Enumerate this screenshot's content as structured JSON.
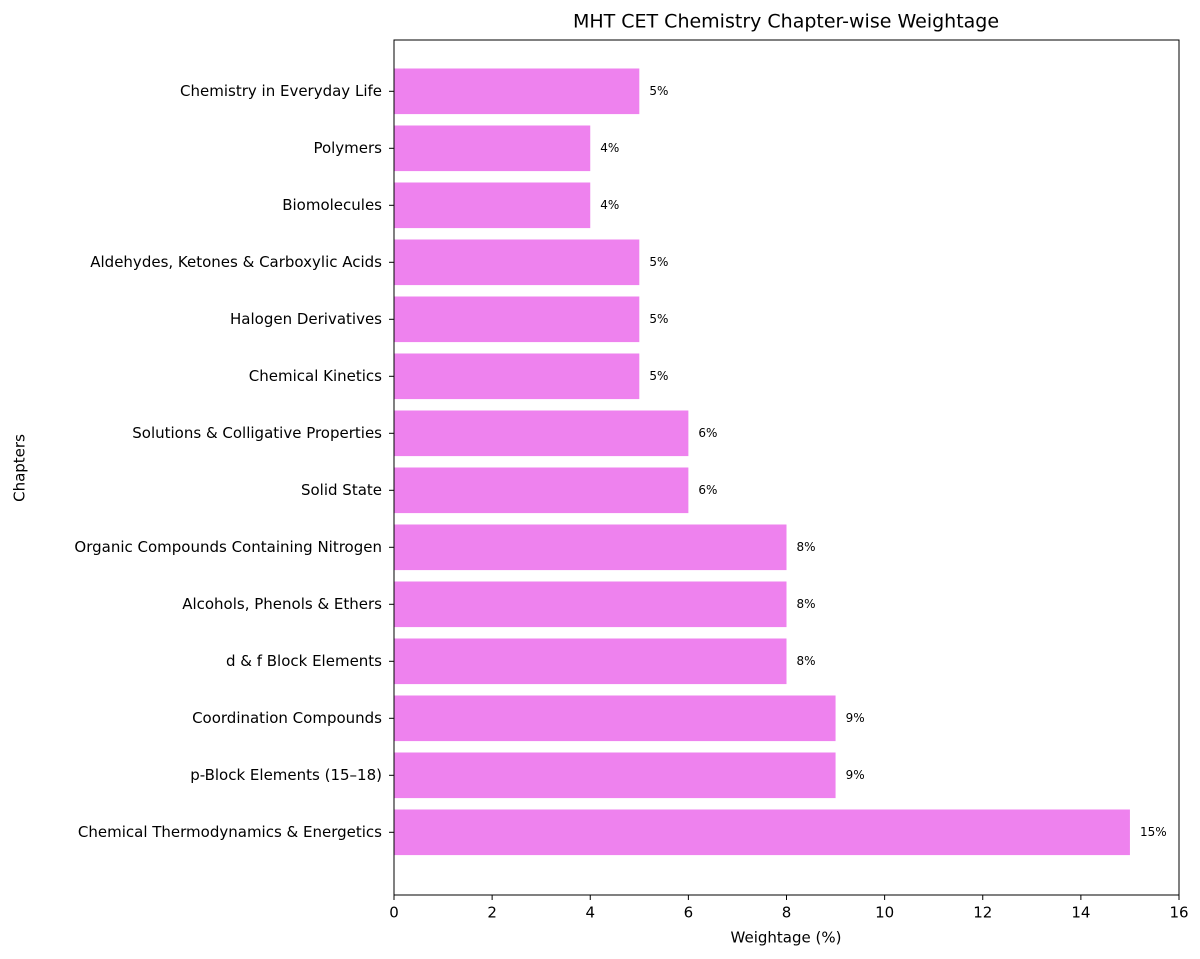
{
  "chart_data": {
    "type": "barh",
    "title": "MHT CET Chemistry Chapter-wise Weightage",
    "x_label": "Weightage (%)",
    "y_label": "Chapters",
    "categories": [
      "Chemical Thermodynamics & Energetics",
      "p-Block Elements (15–18)",
      "Coordination Compounds",
      "d & f Block Elements",
      "Alcohols, Phenols & Ethers",
      "Organic Compounds Containing Nitrogen",
      "Solid State",
      "Solutions & Colligative Properties",
      "Chemical Kinetics",
      "Halogen Derivatives",
      "Aldehydes, Ketones & Carboxylic Acids",
      "Biomolecules",
      "Polymers",
      "Chemistry in Everyday Life"
    ],
    "values": [
      15,
      9,
      9,
      8,
      8,
      8,
      6,
      6,
      5,
      5,
      5,
      4,
      4,
      5
    ],
    "value_labels": [
      "15%",
      "9%",
      "9%",
      "8%",
      "8%",
      "8%",
      "6%",
      "6%",
      "5%",
      "5%",
      "5%",
      "4%",
      "4%",
      "5%"
    ],
    "color": "#ee82ee",
    "xlim": [
      0,
      16
    ],
    "xticks": [
      0,
      2,
      4,
      6,
      8,
      10,
      12,
      14,
      16
    ],
    "grid": false
  }
}
